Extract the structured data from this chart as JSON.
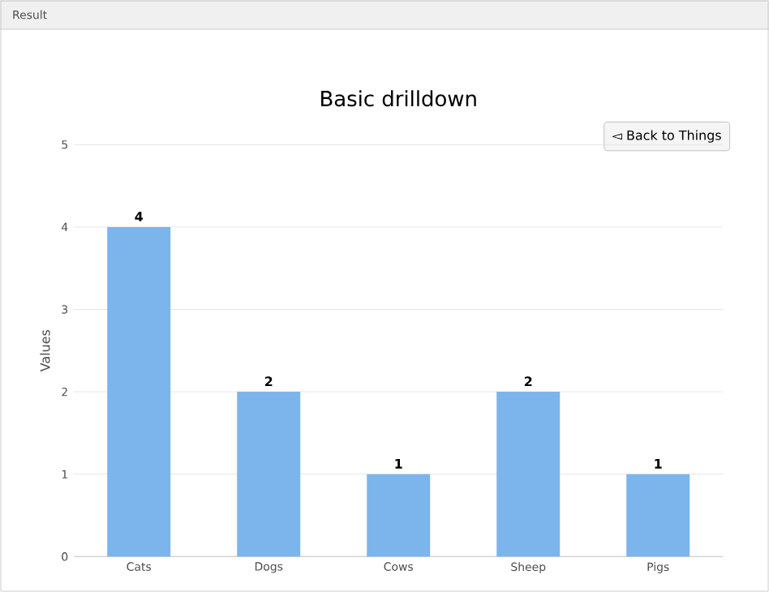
{
  "chart_data": {
    "type": "bar",
    "title": "Basic drilldown",
    "ylabel": "Values",
    "categories": [
      "Cats",
      "Dogs",
      "Cows",
      "Sheep",
      "Pigs"
    ],
    "values": [
      4,
      2,
      1,
      2,
      1
    ],
    "color": "#7cb5ec",
    "ylim": [
      0,
      5
    ],
    "yticks": [
      0,
      1,
      2,
      3,
      4,
      5
    ],
    "grid": "y",
    "data_labels": true,
    "annotations": [
      "Result",
      "◅ Back to Things"
    ]
  }
}
